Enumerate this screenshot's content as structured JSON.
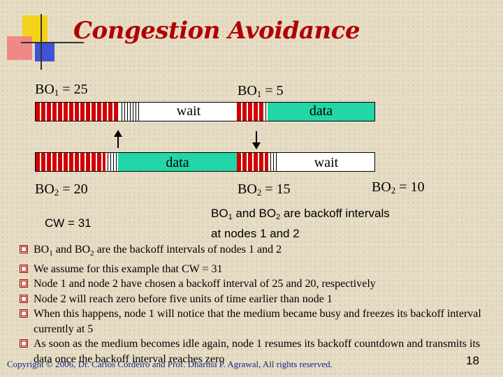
{
  "title": "Congestion Avoidance",
  "node1": {
    "bo_first": {
      "prefix": "BO",
      "sub": "1",
      "suffix": " = 25"
    },
    "bo_second": {
      "prefix": "BO",
      "sub": "1",
      "suffix": " = 5"
    },
    "wait_label": "wait",
    "data_label": "data"
  },
  "node2": {
    "bo_first": {
      "prefix": "BO",
      "sub": "2",
      "suffix": " = 20"
    },
    "bo_second": {
      "prefix": "BO",
      "sub": "2",
      "suffix": " = 15"
    },
    "bo_third": {
      "prefix": "BO",
      "sub": "2",
      "suffix": " = 10"
    },
    "data_label": "data",
    "wait_label": "wait"
  },
  "cw_label": "CW = 31",
  "note": {
    "line1_a": "BO",
    "line1_sub1": "1",
    "line1_b": " and BO",
    "line1_sub2": "2",
    "line1_c": " are backoff intervals",
    "line2": "at nodes 1 and 2"
  },
  "bullets": [
    {
      "parts": [
        "BO",
        "1",
        " and BO",
        "2",
        " are the backoff intervals of nodes 1 and 2"
      ]
    },
    {
      "text": "We assume for this example that CW = 31"
    },
    {
      "text": "Node 1 and node 2 have chosen a backoff interval of 25 and 20, respectively"
    },
    {
      "text": "Node 2 will reach zero before five units of time earlier than node 1"
    },
    {
      "text": "When this happens, node 1 will notice that the medium became busy and freezes its backoff interval currently at 5"
    },
    {
      "text": "As soon as the medium becomes idle again, node 1 resumes its backoff countdown and transmits its data once the backoff interval reaches zero"
    }
  ],
  "footer": "Copyright © 2006, Dr. Carlos Cordeiro and Prof. Dharma P. Agrawal, All rights reserved.",
  "page_number": "18",
  "colors": {
    "title": "#b00000",
    "data_fill": "#22d6a8",
    "backoff": "#d00000",
    "footer": "#102a8a"
  }
}
